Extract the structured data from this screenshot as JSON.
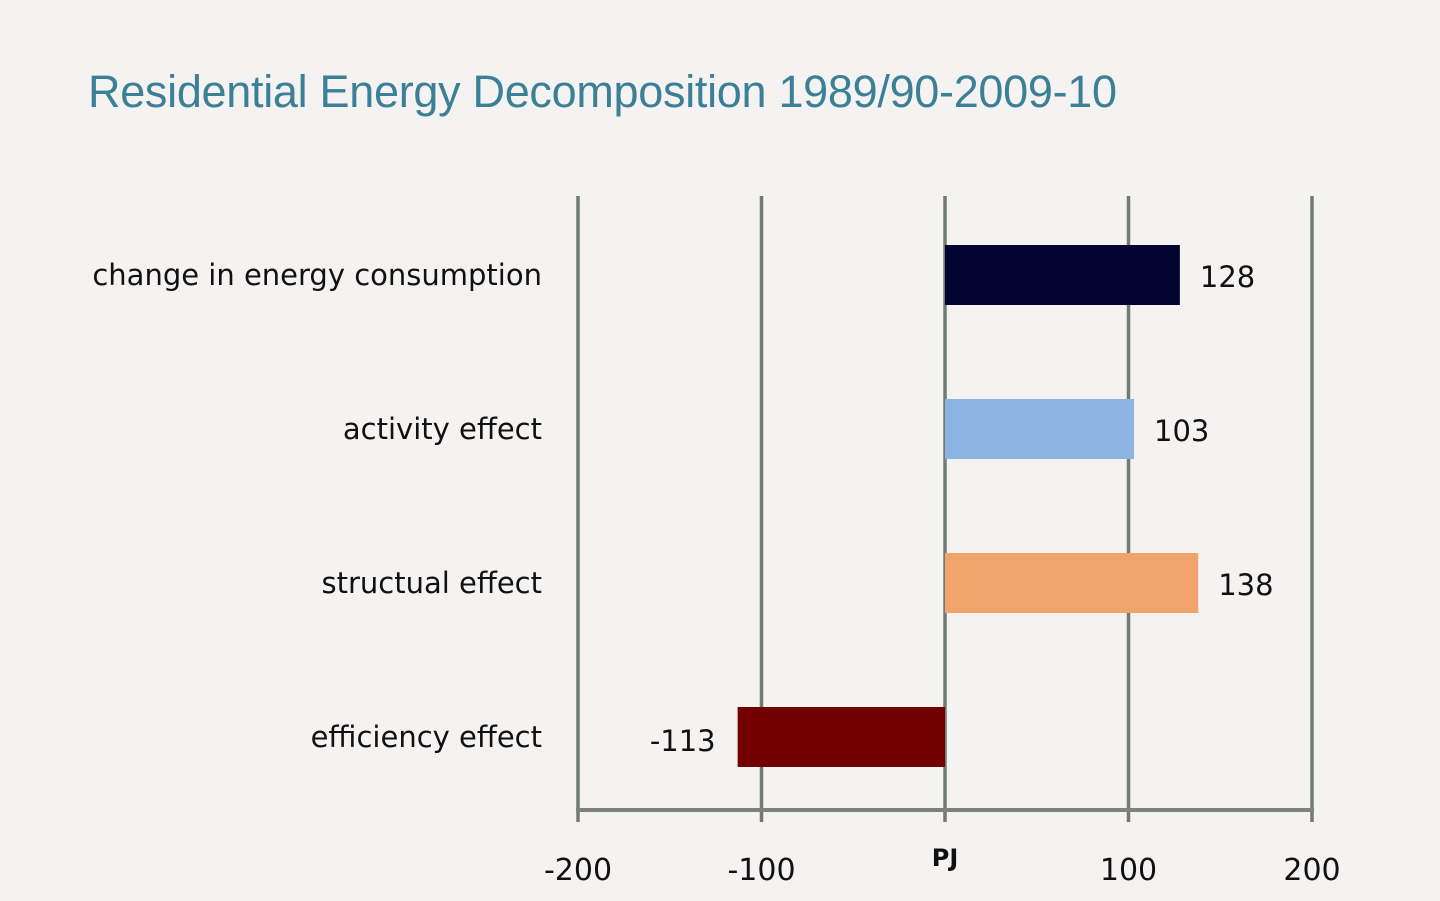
{
  "colors": {
    "title": "#3b8096",
    "gridline": "#6e7c72",
    "axis": "#7a847a",
    "text": "#111111",
    "background": "#f5f2f2"
  },
  "chart_data": {
    "type": "bar",
    "orientation": "horizontal",
    "title": "Residential Energy Decomposition 1989/90-2009-10",
    "xlabel": "PJ",
    "ylabel": "",
    "xlim": [
      -200,
      200
    ],
    "grid": true,
    "legend": "none",
    "categories": [
      "change in energy consumption",
      "activity effect",
      "structual effect",
      "efficiency effect"
    ],
    "values": [
      128,
      103,
      138,
      -113
    ],
    "data_labels": [
      "128",
      "103",
      "138",
      "-113"
    ],
    "bar_colors": [
      "#040433",
      "#8db3e2",
      "#f0a46c",
      "#720000"
    ],
    "ticks": [
      {
        "value": -200,
        "label": "-200"
      },
      {
        "value": -100,
        "label": "-100"
      },
      {
        "value": 0,
        "label": "PJ"
      },
      {
        "value": 100,
        "label": "100"
      },
      {
        "value": 200,
        "label": "200"
      }
    ]
  }
}
